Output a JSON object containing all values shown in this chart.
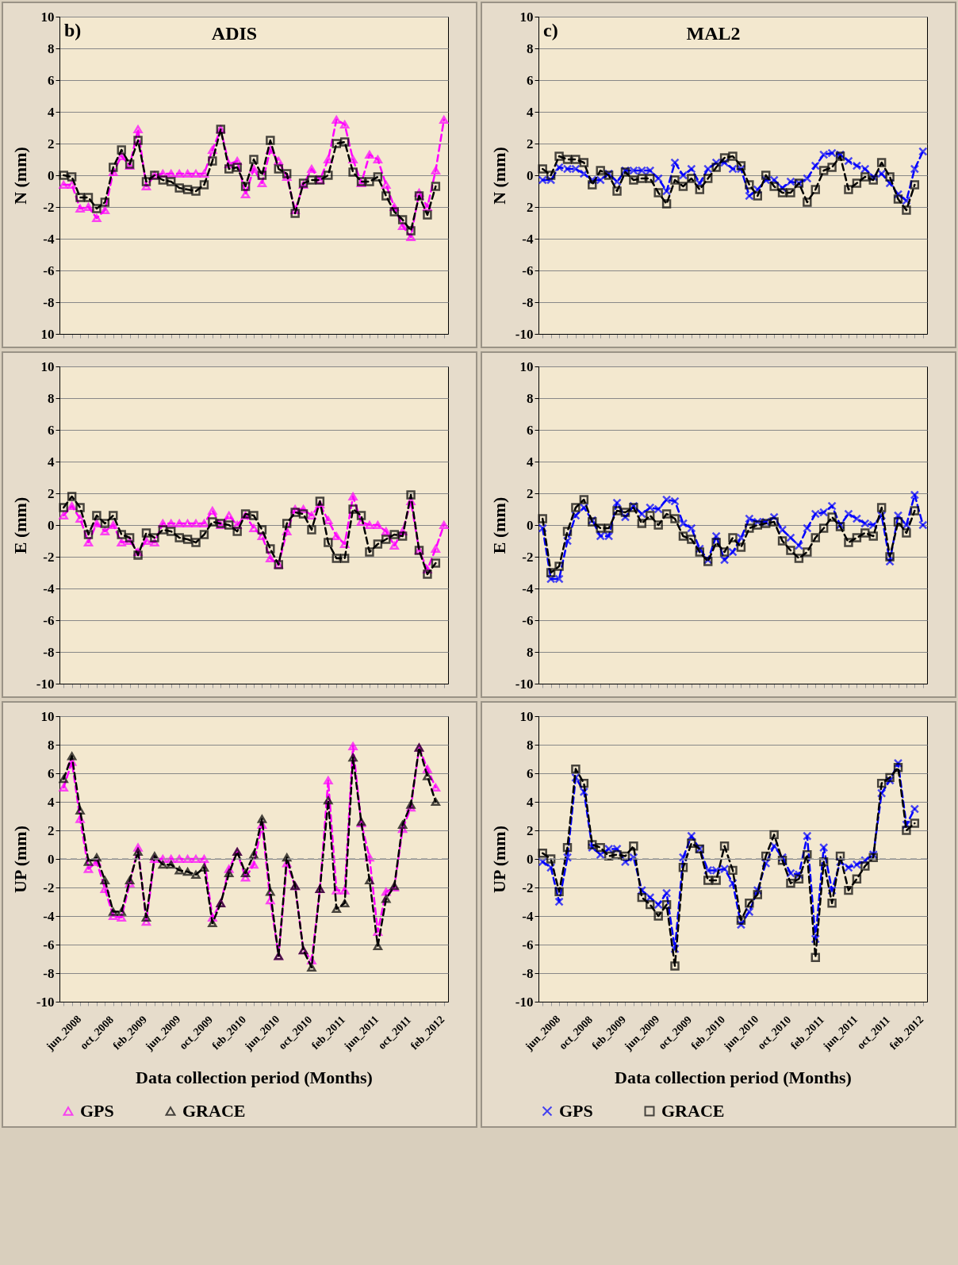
{
  "chart_data": [
    {
      "type": "line",
      "title": "ADIS",
      "annotations": [
        "b)"
      ],
      "ylabel": "N (mm)",
      "categories": [
        null,
        null,
        null,
        null,
        null,
        null,
        null,
        null,
        null,
        null,
        null,
        null,
        null,
        null,
        null,
        null,
        null,
        null,
        null,
        null,
        null,
        null,
        null,
        null,
        null,
        null,
        null,
        null,
        null,
        null,
        null,
        null,
        null,
        null,
        null,
        null,
        null,
        null,
        null,
        null,
        null,
        null,
        null,
        null,
        null,
        null,
        null
      ],
      "ylim": [
        -10,
        10
      ],
      "yticks": [
        {
          "value": -10,
          "label": "10"
        },
        -8,
        -6,
        -4,
        -2,
        0,
        2,
        4,
        6,
        8,
        10
      ],
      "grid": "y",
      "legend": false,
      "tick_labels": "y",
      "line_style": "dashed",
      "series": [
        {
          "color": "#ff00ff",
          "marker": "triangle",
          "values": [
            -0.6,
            -0.6,
            -2.1,
            -2.0,
            -2.7,
            -2.2,
            0.2,
            1.2,
            0.6,
            2.9,
            -0.7,
            0.0,
            0.1,
            0.1,
            0.1,
            0.1,
            0.1,
            0.1,
            1.6,
            2.9,
            0.7,
            0.9,
            -1.2,
            0.4,
            -0.5,
            1.6,
            0.9,
            -0.1,
            -2.2,
            -0.6,
            0.4,
            -0.3,
            1.0,
            3.5,
            3.2,
            1.0,
            -0.5,
            1.3,
            1.0,
            -0.6,
            -2.0,
            -3.2,
            -3.9,
            -1.1,
            -2.0,
            0.3,
            3.5
          ]
        },
        {
          "color": "#000000",
          "marker": "square",
          "values": [
            0.0,
            -0.1,
            -1.4,
            -1.4,
            -2.1,
            -1.7,
            0.5,
            1.6,
            0.7,
            2.2,
            -0.4,
            0.0,
            -0.3,
            -0.4,
            -0.8,
            -0.9,
            -1.0,
            -0.6,
            0.9,
            2.9,
            0.4,
            0.5,
            -0.7,
            1.0,
            0.0,
            2.2,
            0.4,
            0.1,
            -2.4,
            -0.5,
            -0.3,
            -0.3,
            0.0,
            2.0,
            2.1,
            0.2,
            -0.4,
            -0.4,
            -0.1,
            -1.3,
            -2.3,
            -2.8,
            -3.5,
            -1.3,
            -2.5,
            -0.7,
            null
          ]
        }
      ]
    },
    {
      "type": "line",
      "title": "MAL2",
      "annotations": [
        "c)"
      ],
      "ylabel": "N (mm)",
      "categories": [
        null,
        null,
        null,
        null,
        null,
        null,
        null,
        null,
        null,
        null,
        null,
        null,
        null,
        null,
        null,
        null,
        null,
        null,
        null,
        null,
        null,
        null,
        null,
        null,
        null,
        null,
        null,
        null,
        null,
        null,
        null,
        null,
        null,
        null,
        null,
        null,
        null,
        null,
        null,
        null,
        null,
        null,
        null,
        null,
        null,
        null,
        null
      ],
      "ylim": [
        -10,
        10
      ],
      "yticks": [
        -10,
        -8,
        -6,
        -4,
        {
          "value": -2,
          "label": "2"
        },
        0,
        2,
        4,
        6,
        8,
        10
      ],
      "grid": "y",
      "legend": false,
      "tick_labels": "y",
      "line_style": "dashed",
      "series": [
        {
          "color": "#0000ff",
          "marker": "cross",
          "values": [
            -0.3,
            -0.3,
            0.5,
            0.4,
            0.4,
            0.1,
            -0.3,
            -0.3,
            0.1,
            -0.4,
            0.3,
            0.3,
            0.3,
            0.3,
            -0.2,
            -1.0,
            0.8,
            0.0,
            0.4,
            -0.5,
            0.4,
            0.8,
            0.8,
            0.4,
            0.4,
            -1.3,
            -0.9,
            -0.3,
            -0.3,
            -0.8,
            -0.4,
            -0.5,
            -0.2,
            0.6,
            1.3,
            1.4,
            1.3,
            0.9,
            0.6,
            0.4,
            -0.1,
            0.1,
            -0.5,
            -1.2,
            -1.6,
            0.4,
            1.5
          ]
        },
        {
          "color": "#000000",
          "marker": "square",
          "values": [
            0.4,
            0.0,
            1.2,
            1.0,
            1.0,
            0.8,
            -0.6,
            0.3,
            0.0,
            -1.0,
            0.2,
            -0.3,
            -0.2,
            -0.2,
            -1.1,
            -1.8,
            -0.3,
            -0.7,
            -0.2,
            -0.9,
            -0.2,
            0.5,
            1.1,
            1.2,
            0.6,
            -0.6,
            -1.3,
            0.0,
            -0.7,
            -1.1,
            -1.1,
            -0.5,
            -1.7,
            -0.9,
            0.3,
            0.5,
            1.2,
            -0.9,
            -0.5,
            -0.1,
            -0.3,
            0.8,
            -0.1,
            -1.5,
            -2.2,
            -0.6,
            null
          ]
        }
      ]
    },
    {
      "type": "line",
      "ylabel": "E (mm)",
      "categories": [
        null,
        null,
        null,
        null,
        null,
        null,
        null,
        null,
        null,
        null,
        null,
        null,
        null,
        null,
        null,
        null,
        null,
        null,
        null,
        null,
        null,
        null,
        null,
        null,
        null,
        null,
        null,
        null,
        null,
        null,
        null,
        null,
        null,
        null,
        null,
        null,
        null,
        null,
        null,
        null,
        null,
        null,
        null,
        null,
        null,
        null,
        null
      ],
      "ylim": [
        -10,
        10
      ],
      "yticks": [
        -10,
        -8,
        -6,
        -4,
        -2,
        0,
        2,
        4,
        6,
        8,
        10
      ],
      "grid": "y",
      "legend": false,
      "tick_labels": "y",
      "line_style": "dashed",
      "series": [
        {
          "color": "#ff00ff",
          "marker": "triangle",
          "values": [
            0.6,
            1.2,
            0.4,
            -1.1,
            0.1,
            -0.4,
            0.0,
            -1.1,
            -1.0,
            -1.7,
            -1.0,
            -1.1,
            0.1,
            0.1,
            0.1,
            0.1,
            0.1,
            0.1,
            0.9,
            0.0,
            0.6,
            0.0,
            0.6,
            -0.2,
            -0.7,
            -2.1,
            -2.5,
            -0.4,
            1.0,
            1.0,
            0.6,
            1.3,
            0.3,
            -0.7,
            -1.2,
            1.8,
            0.2,
            0.0,
            0.0,
            -0.4,
            -1.3,
            -0.4,
            1.5,
            -1.6,
            -2.8,
            -1.5,
            0.0
          ]
        },
        {
          "color": "#000000",
          "marker": "square",
          "values": [
            1.1,
            1.8,
            1.1,
            -0.6,
            0.6,
            0.1,
            0.6,
            -0.6,
            -0.8,
            -1.9,
            -0.5,
            -0.8,
            -0.3,
            -0.4,
            -0.8,
            -0.9,
            -1.1,
            -0.6,
            0.2,
            0.1,
            0.0,
            -0.4,
            0.7,
            0.6,
            -0.3,
            -1.5,
            -2.5,
            0.1,
            0.8,
            0.7,
            -0.3,
            1.5,
            -1.1,
            -2.1,
            -2.1,
            1.0,
            0.6,
            -1.7,
            -1.2,
            -0.9,
            -0.6,
            -0.7,
            1.9,
            -1.6,
            -3.1,
            -2.4,
            null
          ]
        }
      ]
    },
    {
      "type": "line",
      "ylabel": "E (mm)",
      "categories": [
        null,
        null,
        null,
        null,
        null,
        null,
        null,
        null,
        null,
        null,
        null,
        null,
        null,
        null,
        null,
        null,
        null,
        null,
        null,
        null,
        null,
        null,
        null,
        null,
        null,
        null,
        null,
        null,
        null,
        null,
        null,
        null,
        null,
        null,
        null,
        null,
        null,
        null,
        null,
        null,
        null,
        null,
        null,
        null,
        null,
        null,
        null
      ],
      "ylim": [
        -10,
        10
      ],
      "yticks": [
        -10,
        {
          "value": -8,
          "label": "8"
        },
        -6,
        -4,
        -2,
        0,
        2,
        4,
        6,
        8,
        10
      ],
      "grid": "y",
      "legend": false,
      "tick_labels": "y",
      "line_style": "dashed",
      "series": [
        {
          "color": "#0000ff",
          "marker": "cross",
          "values": [
            -0.2,
            -3.4,
            -3.4,
            -1.0,
            0.6,
            1.1,
            0.3,
            -0.7,
            -0.7,
            1.4,
            0.5,
            1.2,
            0.7,
            1.1,
            1.0,
            1.6,
            1.5,
            0.1,
            -0.2,
            -1.5,
            -2.2,
            -0.7,
            -2.2,
            -1.7,
            -0.8,
            0.4,
            0.2,
            0.2,
            0.5,
            -0.3,
            -0.8,
            -1.3,
            -0.2,
            0.7,
            0.8,
            1.2,
            0.0,
            0.7,
            0.4,
            0.1,
            0.0,
            0.6,
            -2.3,
            0.6,
            0.0,
            1.9,
            0.0
          ]
        },
        {
          "color": "#000000",
          "marker": "square",
          "values": [
            0.4,
            -3.0,
            -2.6,
            -0.4,
            1.1,
            1.6,
            0.2,
            -0.2,
            -0.2,
            0.9,
            0.8,
            1.1,
            0.1,
            0.6,
            0.0,
            0.7,
            0.4,
            -0.7,
            -0.9,
            -1.7,
            -2.3,
            -1.1,
            -1.7,
            -0.8,
            -1.4,
            -0.2,
            0.0,
            0.1,
            0.2,
            -1.0,
            -1.6,
            -2.1,
            -1.7,
            -0.8,
            -0.2,
            0.5,
            -0.1,
            -1.1,
            -0.8,
            -0.5,
            -0.7,
            1.1,
            -2.0,
            0.2,
            -0.5,
            0.9,
            null
          ]
        }
      ]
    },
    {
      "type": "line",
      "ylabel": "UP (mm)",
      "xlabel": "Data collection period (Months)",
      "categories": [
        "jun_2008",
        null,
        null,
        null,
        "oct_2008",
        null,
        null,
        null,
        "feb_2009",
        null,
        null,
        null,
        "jun_2009",
        null,
        null,
        null,
        "oct_2009",
        null,
        null,
        null,
        "feb_2010",
        null,
        null,
        null,
        "jun_2010",
        null,
        null,
        null,
        "oct_2010",
        null,
        null,
        null,
        "feb_2011",
        null,
        null,
        null,
        "jun_2011",
        null,
        null,
        null,
        "oct_2011",
        null,
        null,
        null,
        "feb_2012",
        null,
        null
      ],
      "ylim": [
        -10,
        10
      ],
      "yticks": [
        -10,
        -8,
        -6,
        -4,
        -2,
        0,
        2,
        4,
        6,
        8,
        10
      ],
      "grid": "y",
      "legend": "bottom",
      "line_style": "dashed",
      "ref_lines": [
        {
          "axis": "y",
          "value": 0,
          "color": "#999999",
          "line_style": "dashed"
        }
      ],
      "series": [
        {
          "name": "GPS",
          "color": "#ff00ff",
          "marker": "triangle",
          "values": [
            5.0,
            6.8,
            2.8,
            -0.7,
            -0.2,
            -2.1,
            -4.0,
            -4.1,
            -1.7,
            0.8,
            -4.4,
            0.0,
            0.0,
            0.0,
            0.0,
            0.0,
            0.0,
            0.0,
            -4.1,
            -3.1,
            -0.7,
            0.5,
            -1.3,
            -0.4,
            2.4,
            -2.9,
            -6.8,
            -0.3,
            -1.9,
            -6.4,
            -7.1,
            -2.1,
            5.5,
            -2.2,
            -2.2,
            7.9,
            2.5,
            0.1,
            -5.1,
            -2.3,
            -2.0,
            2.1,
            3.6,
            7.8,
            6.3,
            5.0,
            null
          ]
        },
        {
          "name": "GRACE",
          "color": "#000000",
          "marker": "triangle",
          "values": [
            5.6,
            7.2,
            3.4,
            -0.2,
            0.1,
            -1.5,
            -3.7,
            -3.7,
            -1.5,
            0.5,
            -4.1,
            0.2,
            -0.4,
            -0.4,
            -0.8,
            -0.9,
            -1.1,
            -0.6,
            -4.5,
            -3.1,
            -1.0,
            0.5,
            -1.0,
            0.3,
            2.8,
            -2.3,
            -6.8,
            0.1,
            -1.9,
            -6.4,
            -7.6,
            -2.1,
            4.1,
            -3.5,
            -3.1,
            7.1,
            2.6,
            -1.5,
            -6.1,
            -2.8,
            -1.9,
            2.4,
            3.8,
            7.8,
            5.8,
            4.0,
            null
          ]
        }
      ]
    },
    {
      "type": "line",
      "ylabel": "UP (mm)",
      "xlabel": "Data collection period (Months)",
      "categories": [
        "jun_2008",
        null,
        null,
        null,
        "oct_2008",
        null,
        null,
        null,
        "feb_2009",
        null,
        null,
        null,
        "jun_2009",
        null,
        null,
        null,
        "oct_2009",
        null,
        null,
        null,
        "feb_2010",
        null,
        null,
        null,
        "jun_2010",
        null,
        null,
        null,
        "oct_2010",
        null,
        null,
        null,
        "feb_2011",
        null,
        null,
        null,
        "jun_2011",
        null,
        null,
        null,
        "oct_2011",
        null,
        null,
        null,
        "feb_2012",
        null,
        null
      ],
      "ylim": [
        -10,
        10
      ],
      "yticks": [
        -10,
        -8,
        -6,
        -4,
        -2,
        0,
        2,
        4,
        6,
        8,
        10
      ],
      "grid": "y",
      "legend": "bottom",
      "line_style": "dashed",
      "ref_lines": [
        {
          "axis": "y",
          "value": 0,
          "color": "#999999",
          "line_style": "dashed"
        }
      ],
      "series": [
        {
          "name": "GPS",
          "color": "#0000ff",
          "marker": "cross",
          "values": [
            -0.2,
            -0.6,
            -3.0,
            0.1,
            5.7,
            4.7,
            0.8,
            0.3,
            0.7,
            0.7,
            -0.2,
            0.1,
            -2.2,
            -2.7,
            -3.2,
            -2.4,
            -6.3,
            0.1,
            1.6,
            0.7,
            -0.8,
            -0.8,
            -0.7,
            -1.7,
            -4.6,
            -3.7,
            -2.2,
            -0.3,
            0.9,
            0.1,
            -1.0,
            -1.1,
            1.6,
            -5.6,
            0.8,
            -2.2,
            -0.2,
            -0.6,
            -0.4,
            -0.1,
            0.3,
            4.6,
            5.5,
            6.7,
            2.4,
            3.5,
            null
          ]
        },
        {
          "name": "GRACE",
          "color": "#000000",
          "marker": "square",
          "values": [
            0.4,
            0.0,
            -2.3,
            0.8,
            6.3,
            5.3,
            1.0,
            0.8,
            0.2,
            0.3,
            0.2,
            0.9,
            -2.7,
            -3.2,
            -4.0,
            -3.2,
            -7.5,
            -0.6,
            1.1,
            0.7,
            -1.5,
            -1.5,
            0.9,
            -0.8,
            -4.3,
            -3.1,
            -2.5,
            0.2,
            1.7,
            -0.1,
            -1.7,
            -1.4,
            0.3,
            -6.9,
            -0.2,
            -3.1,
            0.2,
            -2.2,
            -1.4,
            -0.5,
            0.1,
            5.3,
            5.7,
            6.4,
            2.0,
            2.5,
            null
          ]
        }
      ]
    }
  ]
}
